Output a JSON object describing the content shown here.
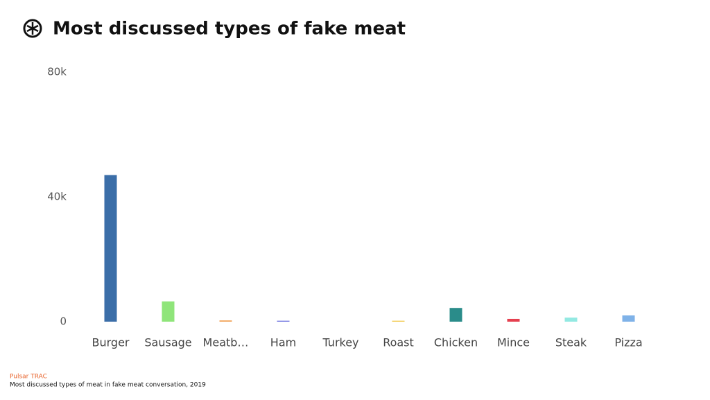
{
  "chart_data": {
    "type": "bar",
    "title": "Most discussed types of fake meat",
    "categories": [
      "Burger",
      "Sausage",
      "Meatb…",
      "Ham",
      "Turkey",
      "Roast",
      "Chicken",
      "Mince",
      "Steak",
      "Pizza"
    ],
    "values": [
      47000,
      6500,
      400,
      300,
      0,
      300,
      4400,
      900,
      1300,
      2000
    ],
    "colors": [
      "#3b6ea8",
      "#8fe57a",
      "#f2a45a",
      "#6f74e0",
      "#c9c9c9",
      "#f2c94c",
      "#2a8c8a",
      "#e5404f",
      "#93e9e2",
      "#7fb2e8"
    ],
    "ylim": [
      0,
      80000
    ],
    "yticks": [
      0,
      {
        "value": 40000,
        "label": "40k"
      },
      {
        "value": 80000,
        "label": "80k"
      }
    ],
    "grid": false,
    "source": "Pulsar TRAC",
    "caption": "Most discussed types of meat in fake meat conversation, 2019"
  }
}
